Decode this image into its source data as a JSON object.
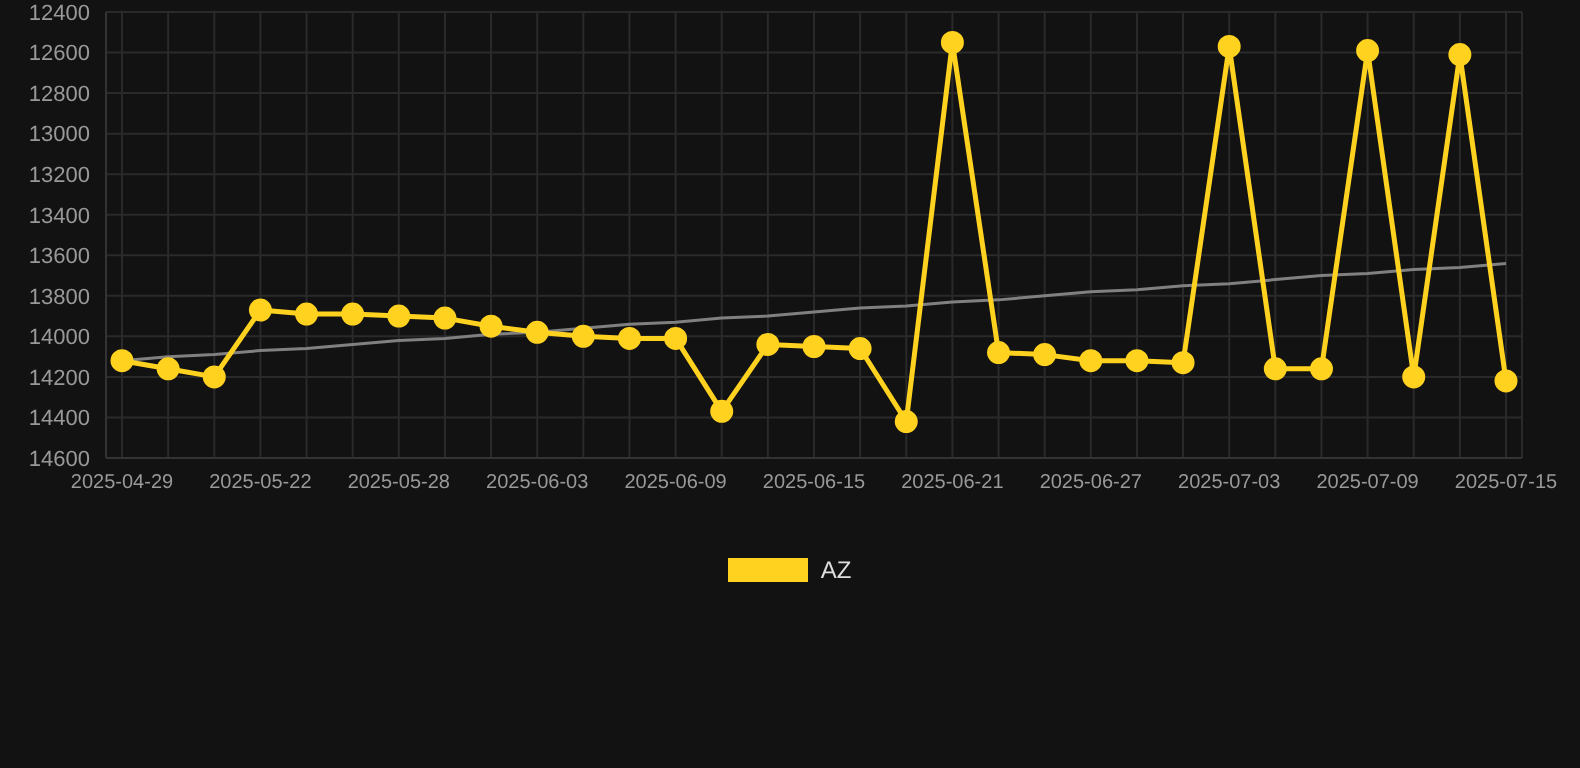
{
  "chart_data": {
    "type": "line",
    "categories": [
      "2025-04-29",
      null,
      null,
      "2025-05-22",
      null,
      null,
      "2025-05-28",
      null,
      null,
      "2025-06-03",
      null,
      null,
      "2025-06-09",
      null,
      null,
      "2025-06-15",
      null,
      null,
      "2025-06-21",
      null,
      null,
      "2025-06-27",
      null,
      null,
      "2025-07-03",
      null,
      null,
      "2025-07-09",
      null,
      null,
      "2025-07-15"
    ],
    "series": [
      {
        "name": "AZ",
        "color": "#ffd21f",
        "marker": "circle",
        "line_style": "solid",
        "values": [
          14120,
          14160,
          14200,
          13870,
          13890,
          13890,
          13900,
          13910,
          13950,
          13980,
          14000,
          14010,
          14010,
          14370,
          14040,
          14050,
          14060,
          14420,
          12550,
          14080,
          14090,
          14120,
          14120,
          14130,
          12570,
          14160,
          14160,
          12590,
          14200,
          12610,
          14220
        ]
      },
      {
        "type": "line",
        "color": "#808080",
        "marker": "none",
        "line_style": "solid",
        "values": [
          14120,
          14100,
          14090,
          14070,
          14060,
          14040,
          14020,
          14010,
          13990,
          13980,
          13960,
          13940,
          13930,
          13910,
          13900,
          13880,
          13860,
          13850,
          13830,
          13820,
          13800,
          13780,
          13770,
          13750,
          13740,
          13720,
          13700,
          13690,
          13670,
          13660,
          13640
        ]
      }
    ],
    "ylim": [
      14600,
      12400
    ],
    "yticks": [
      12400,
      12600,
      12800,
      13000,
      13200,
      13400,
      13600,
      13800,
      14000,
      14200,
      14400,
      14600
    ],
    "grid": true,
    "legend": "bottom"
  }
}
